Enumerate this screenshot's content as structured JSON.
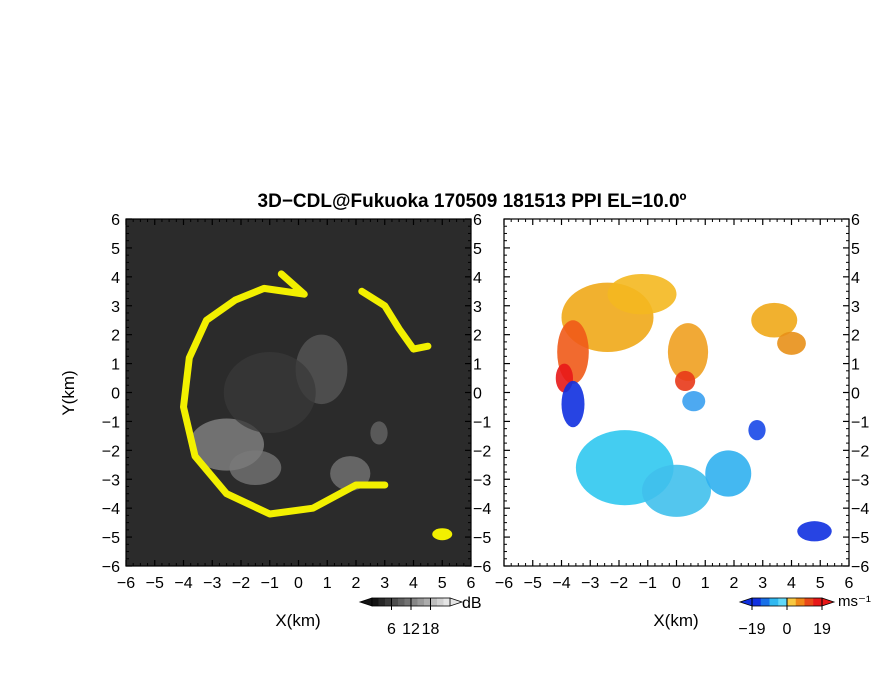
{
  "title": "3D−CDL@Fukuoka 170509 181513 PPI EL=10.0º",
  "chart_data": [
    {
      "type": "heatmap",
      "panel": "reflectivity",
      "xlabel": "X(km)",
      "ylabel": "Y(km)",
      "xlim": [
        -6,
        6
      ],
      "ylim": [
        -6,
        6
      ],
      "x_ticks": [
        -6,
        -5,
        -4,
        -3,
        -2,
        -1,
        0,
        1,
        2,
        3,
        4,
        5,
        6
      ],
      "y_ticks": [
        -6,
        -5,
        -4,
        -3,
        -2,
        -1,
        0,
        1,
        2,
        3,
        4,
        5,
        6
      ],
      "tick_labels": [
        "−6",
        "−5",
        "−4",
        "−3",
        "−2",
        "−1",
        "0",
        "1",
        "2",
        "3",
        "4",
        "5",
        "6"
      ],
      "colorbar": {
        "unit": "dB",
        "ticks": [
          "6",
          "12",
          "18"
        ],
        "range": [
          0,
          24
        ]
      },
      "colors": {
        "background": "#2b2b2b",
        "high": "#f2f000"
      },
      "ring": [
        [
          -0.6,
          4.1
        ],
        [
          0.2,
          3.4
        ],
        [
          -1.2,
          3.6
        ],
        [
          -2.2,
          3.2
        ],
        [
          -3.2,
          2.5
        ],
        [
          -3.8,
          1.2
        ],
        [
          -4.0,
          -0.5
        ],
        [
          -3.6,
          -2.2
        ],
        [
          -2.5,
          -3.5
        ],
        [
          -1.0,
          -4.2
        ],
        [
          0.5,
          -4.0
        ],
        [
          2.0,
          -3.2
        ],
        [
          3.0,
          -3.2
        ]
      ],
      "ring_ne": [
        [
          2.2,
          3.5
        ],
        [
          3.0,
          3.0
        ],
        [
          3.5,
          2.2
        ],
        [
          4.0,
          1.5
        ],
        [
          4.5,
          1.6
        ]
      ]
    },
    {
      "type": "heatmap",
      "panel": "doppler-velocity",
      "xlabel": "X(km)",
      "xlim": [
        -6,
        6
      ],
      "ylim": [
        -6,
        6
      ],
      "x_ticks": [
        -6,
        -5,
        -4,
        -3,
        -2,
        -1,
        0,
        1,
        2,
        3,
        4,
        5,
        6
      ],
      "tick_labels": [
        "−6",
        "−5",
        "−4",
        "−3",
        "−2",
        "−1",
        "0",
        "1",
        "2",
        "3",
        "4",
        "5",
        "6"
      ],
      "colorbar": {
        "unit": "ms⁻¹",
        "ticks": [
          "−19",
          "0",
          "19"
        ],
        "range": [
          -19,
          19
        ]
      },
      "colors": {
        "negative_strong": "#1030e0",
        "negative_light": "#30c8f0",
        "positive_light": "#f0a818",
        "positive_strong": "#e81818"
      }
    }
  ]
}
